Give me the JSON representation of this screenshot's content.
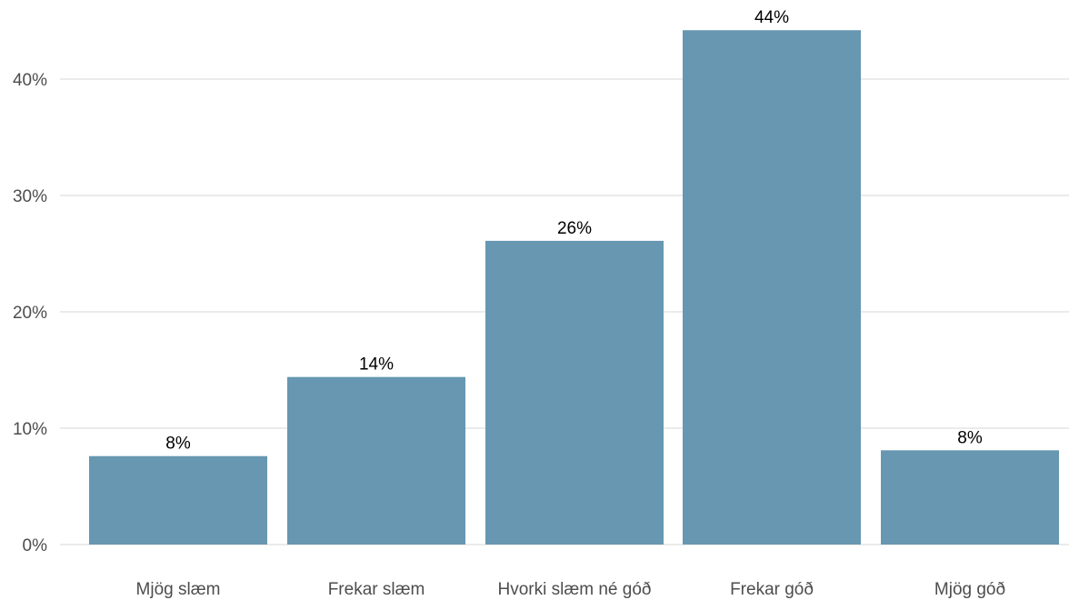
{
  "chart_data": {
    "type": "bar",
    "categories": [
      "Mjög slæm",
      "Frekar slæm",
      "Hvorki slæm né góð",
      "Frekar góð",
      "Mjög góð"
    ],
    "values": [
      7.6,
      14.4,
      26.1,
      44.2,
      8.1
    ],
    "data_labels": [
      "8%",
      "14%",
      "26%",
      "44%",
      "8%"
    ],
    "y_ticks": [
      0,
      10,
      20,
      30,
      40
    ],
    "y_tick_labels": [
      "0%",
      "10%",
      "20%",
      "30%",
      "40%"
    ],
    "ylim": [
      0,
      46
    ],
    "grid": true,
    "bar_color": "#6797b1",
    "title": "",
    "xlabel": "",
    "ylabel": ""
  }
}
